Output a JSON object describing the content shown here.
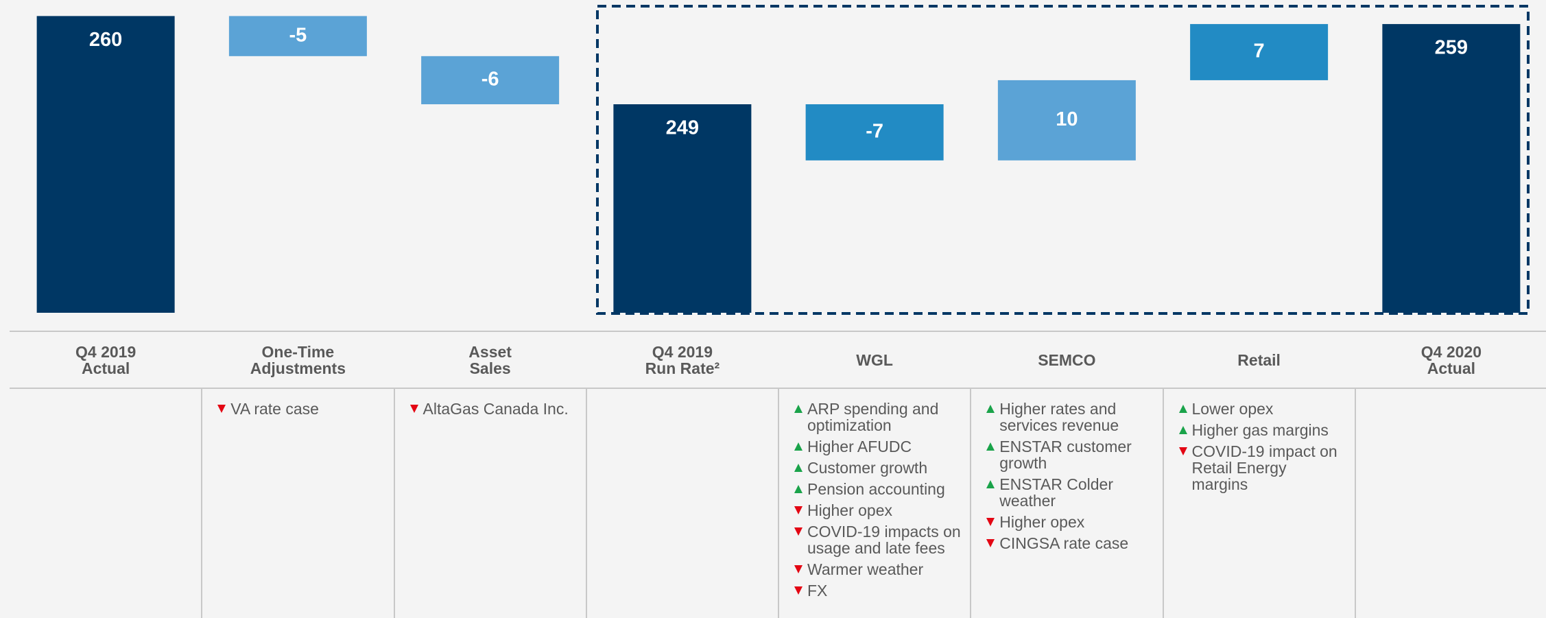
{
  "chart_data": {
    "type": "waterfall",
    "categories": [
      [
        "Q4 2019",
        "Actual"
      ],
      [
        "One-Time",
        "Adjustments"
      ],
      [
        "Asset",
        "Sales"
      ],
      [
        "Q4 2019",
        "Run Rate²"
      ],
      [
        "WGL"
      ],
      [
        "SEMCO"
      ],
      [
        "Retail"
      ],
      [
        "Q4 2020",
        "Actual"
      ]
    ],
    "values": [
      260,
      -5,
      -6,
      249,
      -7,
      10,
      7,
      259
    ],
    "total": [
      true,
      false,
      false,
      true,
      false,
      false,
      false,
      true
    ],
    "colors": [
      "#003764",
      "#5ba3d6",
      "#5ba3d6",
      "#003764",
      "#228bc4",
      "#5ba3d6",
      "#228bc4",
      "#003764"
    ],
    "ylim": [
      223,
      262
    ],
    "drivers": [
      [],
      [
        {
          "text": "VA rate case",
          "dir": "down"
        }
      ],
      [
        {
          "text": "AltaGas Canada Inc.",
          "dir": "down"
        }
      ],
      [],
      [
        {
          "text": "ARP spending and optimization",
          "dir": "up"
        },
        {
          "text": "Higher AFUDC",
          "dir": "up"
        },
        {
          "text": "Customer growth",
          "dir": "up"
        },
        {
          "text": "Pension accounting",
          "dir": "up"
        },
        {
          "text": "Higher opex",
          "dir": "down"
        },
        {
          "text": "COVID-19 impacts on usage and late fees",
          "dir": "down"
        },
        {
          "text": "Warmer weather",
          "dir": "down"
        },
        {
          "text": "FX",
          "dir": "down"
        }
      ],
      [
        {
          "text": "Higher rates and services revenue",
          "dir": "up"
        },
        {
          "text": "ENSTAR customer growth",
          "dir": "up"
        },
        {
          "text": "ENSTAR Colder weather",
          "dir": "up"
        },
        {
          "text": "Higher opex",
          "dir": "down"
        },
        {
          "text": "CINGSA rate case",
          "dir": "down"
        }
      ],
      [
        {
          "text": "Lower opex",
          "dir": "up"
        },
        {
          "text": "Higher gas margins",
          "dir": "up"
        },
        {
          "text": "COVID-19 impact on Retail Energy margins",
          "dir": "down"
        }
      ],
      []
    ]
  }
}
